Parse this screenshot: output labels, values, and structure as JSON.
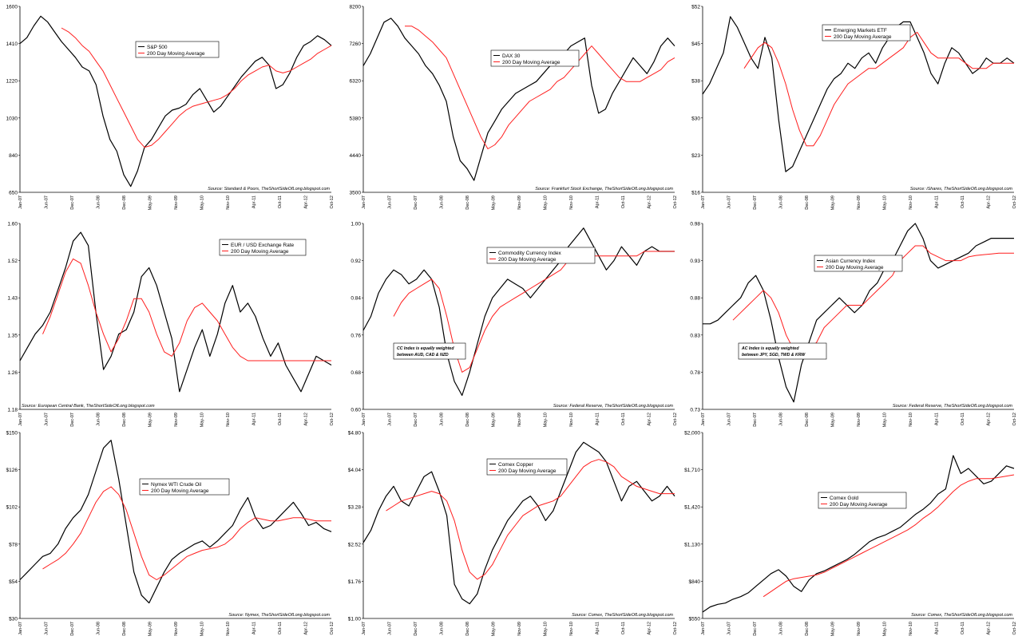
{
  "colors": {
    "price": "#000000",
    "moving_average": "#ff1e1e",
    "axis": "#000000",
    "background": "#ffffff"
  },
  "x_tick_labels": [
    "Jan-07",
    "Jun-07",
    "Dec-07",
    "Jun-08",
    "Dec-08",
    "May-09",
    "Nov-09",
    "May-10",
    "Nov-10",
    "Apr-11",
    "Oct-11",
    "Apr-12",
    "Oct-12"
  ],
  "chart_data": [
    {
      "type": "line",
      "series": [
        {
          "name": "S&P 500",
          "values": [
            1410,
            1440,
            1500,
            1550,
            1520,
            1470,
            1420,
            1380,
            1340,
            1290,
            1270,
            1200,
            1040,
            920,
            860,
            740,
            680,
            760,
            880,
            920,
            980,
            1040,
            1070,
            1080,
            1100,
            1150,
            1180,
            1120,
            1060,
            1090,
            1140,
            1190,
            1240,
            1280,
            1320,
            1340,
            1300,
            1180,
            1200,
            1260,
            1340,
            1400,
            1420,
            1450,
            1430,
            1400
          ]
        },
        {
          "name": "200 Day Moving Average",
          "values": [
            null,
            null,
            null,
            null,
            null,
            null,
            1490,
            1470,
            1440,
            1400,
            1370,
            1320,
            1270,
            1200,
            1130,
            1060,
            990,
            920,
            880,
            890,
            920,
            960,
            1000,
            1040,
            1070,
            1090,
            1100,
            1110,
            1120,
            1130,
            1150,
            1180,
            1220,
            1250,
            1270,
            1290,
            1300,
            1270,
            1260,
            1270,
            1290,
            1310,
            1330,
            1360,
            1380,
            1400
          ]
        }
      ],
      "xlabel": "",
      "ylabel": "",
      "y_tick_labels": [
        "1600",
        "1410",
        "1220",
        "1030",
        "840",
        "650"
      ],
      "ylim": [
        650,
        1600
      ],
      "source": "Source: Standard & Poors, TheShortSideOfLong.blogspot.com",
      "legend_position": "upper-middle"
    },
    {
      "type": "line",
      "series": [
        {
          "name": "DAX 30",
          "values": [
            6700,
            7000,
            7400,
            7800,
            7900,
            7700,
            7400,
            7200,
            7000,
            6700,
            6500,
            6200,
            5800,
            4900,
            4300,
            4100,
            3800,
            4400,
            5000,
            5300,
            5600,
            5800,
            6000,
            6100,
            6200,
            6300,
            6500,
            6700,
            6900,
            7000,
            7200,
            7300,
            7400,
            6200,
            5500,
            5600,
            6000,
            6300,
            6600,
            6900,
            6700,
            6500,
            6800,
            7200,
            7400,
            7200
          ]
        },
        {
          "name": "200 Day Moving Average",
          "values": [
            null,
            null,
            null,
            null,
            null,
            null,
            7700,
            7700,
            7600,
            7450,
            7300,
            7100,
            6900,
            6500,
            6100,
            5700,
            5300,
            4900,
            4600,
            4700,
            4900,
            5200,
            5400,
            5600,
            5800,
            5900,
            6000,
            6100,
            6300,
            6400,
            6600,
            6800,
            7000,
            7200,
            7000,
            6800,
            6600,
            6400,
            6300,
            6300,
            6300,
            6400,
            6500,
            6600,
            6800,
            6900
          ]
        }
      ],
      "xlabel": "",
      "ylabel": "",
      "y_tick_labels": [
        "8200",
        "7260",
        "6320",
        "5380",
        "4440",
        "3500"
      ],
      "ylim": [
        3500,
        8200
      ],
      "source": "Source: Frankfurt Stock Exchange, TheShortSideOfLong.blogspot.com",
      "legend_position": "upper-middle"
    },
    {
      "type": "line",
      "series": [
        {
          "name": "Emerging Markets ETF",
          "values": [
            35,
            37,
            40,
            43,
            50,
            48,
            45,
            42,
            40,
            46,
            42,
            30,
            20,
            21,
            24,
            27,
            30,
            33,
            36,
            38,
            39,
            41,
            40,
            42,
            43,
            41,
            44,
            46,
            48,
            49,
            49,
            46,
            43,
            39,
            37,
            41,
            44,
            43,
            41,
            39,
            40,
            42,
            41,
            41,
            42,
            41
          ]
        },
        {
          "name": "200 Day Moving Average",
          "values": [
            null,
            null,
            null,
            null,
            null,
            null,
            40,
            42,
            44,
            45,
            44,
            41,
            37,
            32,
            28,
            25,
            25,
            27,
            30,
            33,
            35,
            37,
            38,
            39,
            40,
            40,
            41,
            42,
            43,
            44,
            46,
            47,
            45,
            43,
            42,
            42,
            42,
            42,
            41,
            40,
            40,
            40,
            41,
            41,
            41,
            41
          ]
        }
      ],
      "xlabel": "",
      "ylabel": "",
      "y_tick_labels": [
        "$52",
        "$45",
        "$38",
        "$30",
        "$23",
        "$16"
      ],
      "ylim": [
        16,
        52
      ],
      "source": "Source: iShares, TheShortSideOfLong.blogspot.com",
      "legend_position": "upper-middle"
    },
    {
      "type": "line",
      "series": [
        {
          "name": "EUR / USD Exchange Rate",
          "values": [
            1.29,
            1.32,
            1.35,
            1.37,
            1.4,
            1.45,
            1.5,
            1.56,
            1.58,
            1.55,
            1.4,
            1.27,
            1.3,
            1.35,
            1.36,
            1.4,
            1.48,
            1.5,
            1.46,
            1.4,
            1.34,
            1.22,
            1.27,
            1.32,
            1.36,
            1.3,
            1.35,
            1.42,
            1.46,
            1.4,
            1.42,
            1.39,
            1.34,
            1.3,
            1.33,
            1.28,
            1.25,
            1.22,
            1.26,
            1.3,
            1.29,
            1.28
          ]
        },
        {
          "name": "200 Day Moving Average",
          "values": [
            null,
            null,
            null,
            1.35,
            1.39,
            1.44,
            1.49,
            1.52,
            1.51,
            1.46,
            1.4,
            1.35,
            1.31,
            1.34,
            1.38,
            1.43,
            1.43,
            1.4,
            1.35,
            1.31,
            1.3,
            1.33,
            1.38,
            1.41,
            1.42,
            1.4,
            1.38,
            1.35,
            1.32,
            1.3,
            1.29,
            1.29,
            1.29,
            1.29,
            1.29,
            1.29,
            1.29,
            1.29,
            1.29,
            1.29,
            1.29,
            1.29
          ]
        }
      ],
      "xlabel": "",
      "ylabel": "",
      "y_tick_labels": [
        "1.60",
        "1.52",
        "1.43",
        "1.35",
        "1.26",
        "1.18"
      ],
      "ylim": [
        1.18,
        1.6
      ],
      "source": "Source: European Central Bank, TheShortSideOfLong.blogspot.com",
      "legend_position": "upper-right"
    },
    {
      "type": "line",
      "series": [
        {
          "name": "Commodity Currency Index",
          "values": [
            0.77,
            0.8,
            0.85,
            0.88,
            0.9,
            0.89,
            0.87,
            0.88,
            0.9,
            0.88,
            0.82,
            0.72,
            0.66,
            0.63,
            0.68,
            0.74,
            0.8,
            0.84,
            0.86,
            0.88,
            0.87,
            0.86,
            0.84,
            0.86,
            0.88,
            0.9,
            0.92,
            0.95,
            0.97,
            0.99,
            0.96,
            0.93,
            0.9,
            0.92,
            0.95,
            0.93,
            0.91,
            0.94,
            0.95,
            0.94,
            0.94,
            0.94
          ]
        },
        {
          "name": "200 Day Moving Average",
          "values": [
            null,
            null,
            null,
            null,
            0.8,
            0.83,
            0.85,
            0.86,
            0.87,
            0.88,
            0.86,
            0.8,
            0.73,
            0.68,
            0.69,
            0.73,
            0.77,
            0.8,
            0.82,
            0.83,
            0.84,
            0.85,
            0.86,
            0.87,
            0.88,
            0.89,
            0.9,
            0.92,
            0.93,
            0.94,
            0.93,
            0.93,
            0.93,
            0.93,
            0.93,
            0.93,
            0.93,
            0.94,
            0.94,
            0.94,
            0.94,
            0.94
          ]
        }
      ],
      "xlabel": "",
      "ylabel": "",
      "y_tick_labels": [
        "1.00",
        "0.92",
        "0.84",
        "0.76",
        "0.68",
        "0.60"
      ],
      "ylim": [
        0.6,
        1.0
      ],
      "annotation_lines": [
        "CC Index is equally weighted",
        "between AUD, CAD & NZD"
      ],
      "source": "Source: Federal Reserve, TheShortSideOfLong.blogspot.com",
      "legend_position": "upper-middle"
    },
    {
      "type": "line",
      "series": [
        {
          "name": "Asian Currency Index",
          "values": [
            0.845,
            0.845,
            0.85,
            0.86,
            0.87,
            0.88,
            0.9,
            0.91,
            0.89,
            0.85,
            0.8,
            0.76,
            0.74,
            0.79,
            0.82,
            0.85,
            0.86,
            0.87,
            0.88,
            0.87,
            0.86,
            0.87,
            0.89,
            0.9,
            0.92,
            0.93,
            0.95,
            0.97,
            0.98,
            0.96,
            0.93,
            0.92,
            0.925,
            0.93,
            0.935,
            0.94,
            0.95,
            0.955,
            0.96,
            0.96,
            0.96,
            0.96
          ]
        },
        {
          "name": "200 Day Moving Average",
          "values": [
            null,
            null,
            null,
            null,
            0.85,
            0.86,
            0.87,
            0.88,
            0.89,
            0.88,
            0.86,
            0.83,
            0.81,
            0.8,
            0.81,
            0.82,
            0.84,
            0.85,
            0.86,
            0.87,
            0.87,
            0.87,
            0.88,
            0.89,
            0.9,
            0.91,
            0.93,
            0.94,
            0.95,
            0.95,
            0.94,
            0.935,
            0.93,
            0.93,
            0.93,
            0.935,
            0.937,
            0.938,
            0.939,
            0.94,
            0.94,
            0.94
          ]
        }
      ],
      "xlabel": "",
      "ylabel": "",
      "y_tick_labels": [
        "0.98",
        "0.93",
        "0.88",
        "0.83",
        "0.78",
        "0.73"
      ],
      "ylim": [
        0.73,
        0.98
      ],
      "annotation_lines": [
        "AC Index is equally weighted",
        "between JPY, SGD, TWD & KRW"
      ],
      "source": "Source: Federal Reserve, TheShortSideOfLong.blogspot.com",
      "legend_position": "upper-middle"
    },
    {
      "type": "line",
      "series": [
        {
          "name": "Nymex WTI Crude Oil",
          "values": [
            55,
            60,
            65,
            70,
            72,
            78,
            88,
            95,
            100,
            110,
            125,
            140,
            145,
            120,
            90,
            60,
            45,
            40,
            50,
            60,
            68,
            72,
            75,
            78,
            80,
            76,
            80,
            85,
            90,
            100,
            108,
            95,
            88,
            90,
            95,
            100,
            105,
            98,
            90,
            92,
            88,
            86
          ]
        },
        {
          "name": "200 Day Moving Average",
          "values": [
            null,
            null,
            null,
            62,
            65,
            68,
            72,
            78,
            85,
            95,
            105,
            112,
            115,
            110,
            100,
            85,
            70,
            58,
            55,
            58,
            62,
            66,
            70,
            72,
            74,
            75,
            76,
            78,
            82,
            88,
            92,
            95,
            94,
            93,
            93,
            94,
            95,
            95,
            94,
            93,
            93,
            93
          ]
        }
      ],
      "xlabel": "",
      "ylabel": "",
      "y_tick_labels": [
        "$150",
        "$126",
        "$102",
        "$78",
        "$54",
        "$30"
      ],
      "ylim": [
        30,
        150
      ],
      "source": "Source: Nymex, TheShortSideOfLong.blogspot.com",
      "legend_position": "upper-left"
    },
    {
      "type": "line",
      "series": [
        {
          "name": "Comex Copper",
          "values": [
            2.55,
            2.8,
            3.2,
            3.5,
            3.7,
            3.4,
            3.3,
            3.6,
            3.9,
            4.0,
            3.6,
            3.1,
            1.7,
            1.4,
            1.3,
            1.5,
            2.0,
            2.4,
            2.7,
            3.0,
            3.2,
            3.4,
            3.5,
            3.3,
            3.0,
            3.2,
            3.6,
            4.0,
            4.4,
            4.6,
            4.5,
            4.4,
            4.2,
            3.8,
            3.4,
            3.7,
            3.8,
            3.6,
            3.4,
            3.5,
            3.7,
            3.5
          ]
        },
        {
          "name": "200 Day Moving Average",
          "values": [
            null,
            null,
            null,
            3.2,
            3.3,
            3.4,
            3.45,
            3.5,
            3.55,
            3.6,
            3.55,
            3.4,
            3.0,
            2.4,
            1.95,
            1.8,
            1.9,
            2.1,
            2.4,
            2.7,
            2.9,
            3.1,
            3.2,
            3.3,
            3.35,
            3.4,
            3.5,
            3.7,
            3.9,
            4.1,
            4.2,
            4.25,
            4.2,
            4.1,
            3.9,
            3.8,
            3.7,
            3.65,
            3.6,
            3.55,
            3.55,
            3.55
          ]
        }
      ],
      "xlabel": "",
      "ylabel": "",
      "y_tick_labels": [
        "$4.80",
        "$4.04",
        "$3.28",
        "$2.52",
        "$1.76",
        "$1.00"
      ],
      "ylim": [
        1.0,
        4.8
      ],
      "source": "Source: Comex, TheShortSideOfLong.blogspot.com",
      "legend_position": "upper-middle"
    },
    {
      "type": "line",
      "series": [
        {
          "name": "Comex Gold",
          "values": [
            600,
            640,
            660,
            670,
            700,
            720,
            750,
            800,
            850,
            900,
            930,
            880,
            800,
            760,
            850,
            900,
            920,
            950,
            980,
            1010,
            1050,
            1100,
            1150,
            1180,
            1200,
            1230,
            1260,
            1310,
            1360,
            1400,
            1450,
            1520,
            1560,
            1820,
            1680,
            1720,
            1660,
            1600,
            1620,
            1680,
            1740,
            1720
          ]
        },
        {
          "name": "200 Day Moving Average",
          "values": [
            null,
            null,
            null,
            null,
            null,
            null,
            null,
            null,
            720,
            760,
            800,
            840,
            860,
            870,
            880,
            890,
            910,
            940,
            970,
            1000,
            1030,
            1060,
            1090,
            1120,
            1150,
            1180,
            1210,
            1240,
            1280,
            1330,
            1370,
            1420,
            1480,
            1540,
            1590,
            1620,
            1640,
            1640,
            1640,
            1650,
            1660,
            1670
          ]
        }
      ],
      "xlabel": "",
      "ylabel": "",
      "y_tick_labels": [
        "$2,000",
        "$1,710",
        "$1,420",
        "$1,130",
        "$840",
        "$550"
      ],
      "ylim": [
        550,
        2000
      ],
      "source": "Source: Comex, TheShortSideOfLong.blogspot.com",
      "legend_position": "upper-middle"
    }
  ]
}
